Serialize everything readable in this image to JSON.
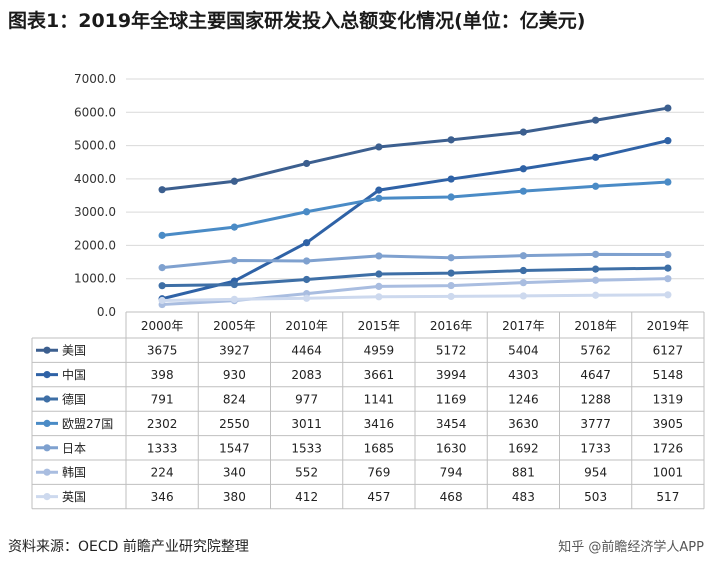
{
  "title": "图表1：2019年全球主要国家研发投入总额变化情况(单位：亿美元)",
  "source": "资料来源：OECD 前瞻产业研究院整理",
  "watermark": "知乎 @前瞻经济学人APP",
  "chart_data": {
    "type": "line",
    "categories": [
      "2000年",
      "2005年",
      "2010年",
      "2015年",
      "2016年",
      "2017年",
      "2018年",
      "2019年"
    ],
    "ylim": [
      0,
      7000
    ],
    "yticks": [
      "0.0",
      "1000.0",
      "2000.0",
      "3000.0",
      "4000.0",
      "5000.0",
      "6000.0",
      "7000.0"
    ],
    "grid": true,
    "legend": "table-left",
    "series": [
      {
        "name": "美国",
        "color": "#3c5f8f",
        "values": [
          3675,
          3927,
          4464,
          4959,
          5172,
          5404,
          5762,
          6127
        ]
      },
      {
        "name": "中国",
        "color": "#2f62a6",
        "values": [
          398,
          930,
          2083,
          3661,
          3994,
          4303,
          4647,
          5148
        ]
      },
      {
        "name": "德国",
        "color": "#3e6fa6",
        "values": [
          791,
          824,
          977,
          1141,
          1169,
          1246,
          1288,
          1319
        ]
      },
      {
        "name": "欧盟27国",
        "color": "#4a8bc6",
        "values": [
          2302,
          2550,
          3011,
          3416,
          3454,
          3630,
          3777,
          3905
        ]
      },
      {
        "name": "日本",
        "color": "#7fa1cf",
        "values": [
          1333,
          1547,
          1533,
          1685,
          1630,
          1692,
          1733,
          1726
        ]
      },
      {
        "name": "韩国",
        "color": "#a9bde0",
        "values": [
          224,
          340,
          552,
          769,
          794,
          881,
          954,
          1001
        ]
      },
      {
        "name": "英国",
        "color": "#cdd9ee",
        "values": [
          346,
          380,
          412,
          457,
          468,
          483,
          503,
          517
        ]
      }
    ]
  }
}
